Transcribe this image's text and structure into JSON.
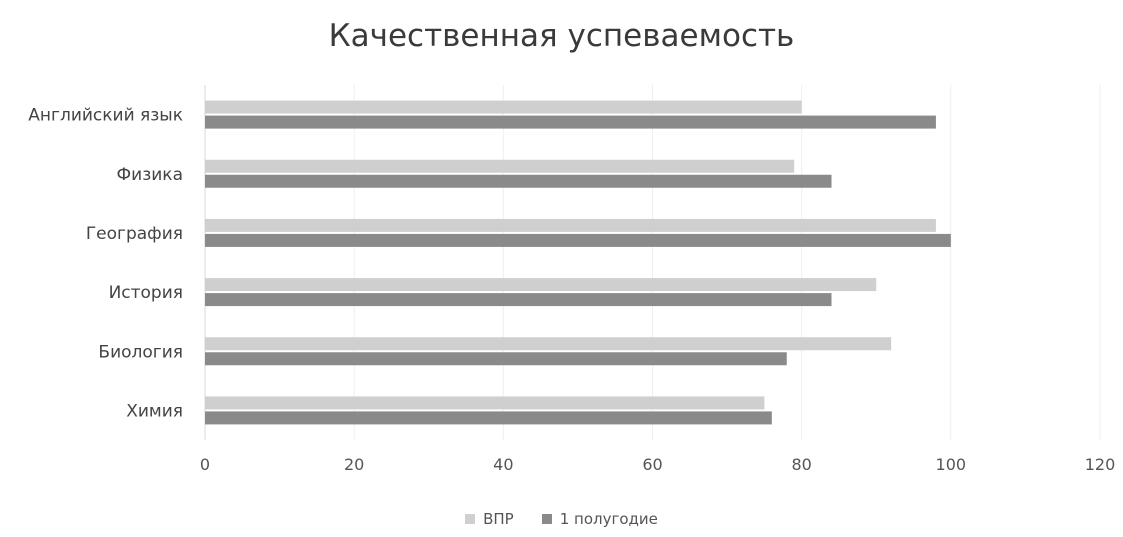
{
  "chart_data": {
    "type": "bar",
    "orientation": "horizontal",
    "title": "Качественная успеваемость",
    "categories": [
      "Английский язык",
      "Физика",
      "География",
      "История",
      "Биология",
      "Химия"
    ],
    "series": [
      {
        "name": "ВПР",
        "values": [
          80,
          79,
          98,
          90,
          92,
          75
        ],
        "color": "#cfcfcf"
      },
      {
        "name": "1 полугодие",
        "values": [
          98,
          84,
          100,
          84,
          78,
          76
        ],
        "color": "#8a8a8a"
      }
    ],
    "xlim": [
      0,
      120
    ],
    "x_ticks": [
      0,
      20,
      40,
      60,
      80,
      100,
      120
    ],
    "grid": true,
    "legend_position": "bottom"
  }
}
